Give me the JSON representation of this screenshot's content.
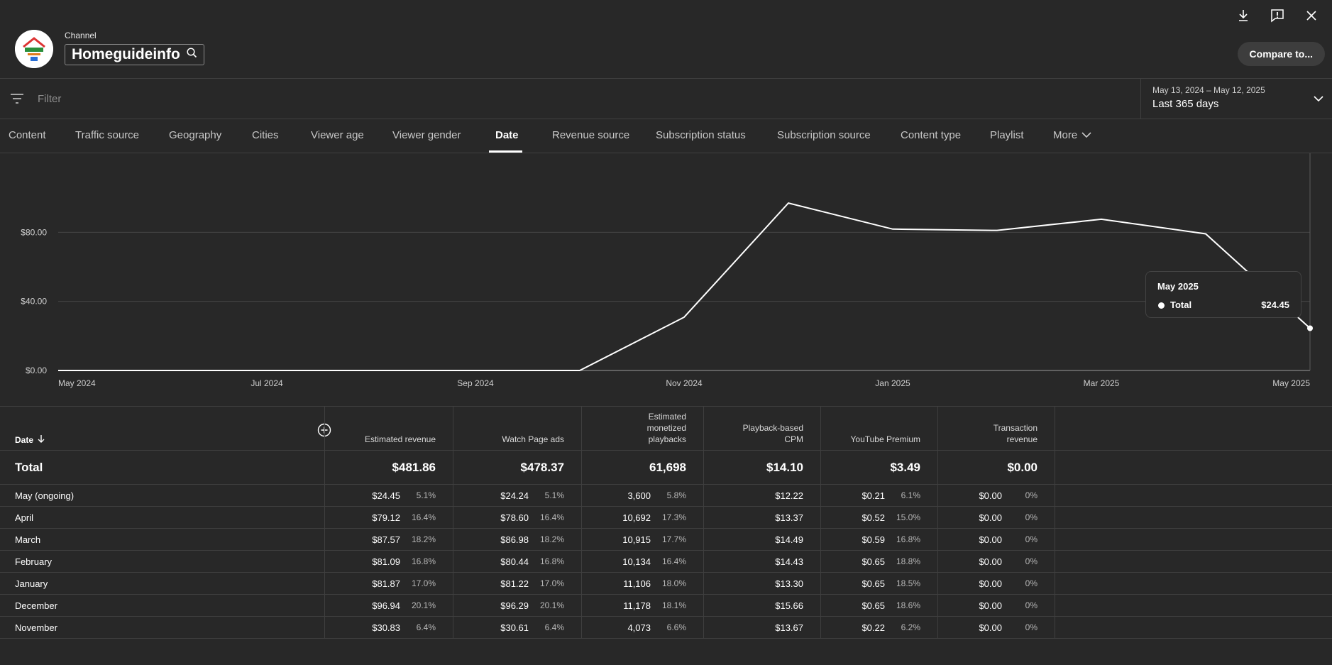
{
  "channel": {
    "label": "Channel",
    "name": "Homeguideinfo",
    "compare_label": "Compare to..."
  },
  "filter": {
    "placeholder": "Filter",
    "date_range_sub": "May 13, 2024 – May 12, 2025",
    "date_range_main": "Last 365 days"
  },
  "tabs": [
    "Content",
    "Traffic source",
    "Geography",
    "Cities",
    "Viewer age",
    "Viewer gender",
    "Date",
    "Revenue source",
    "Subscription status",
    "Subscription source",
    "Content type",
    "Playlist",
    "More"
  ],
  "active_tab": "Date",
  "chart_data": {
    "type": "line",
    "x": [
      "May 2024",
      "Jun 2024",
      "Jul 2024",
      "Aug 2024",
      "Sep 2024",
      "Oct 2024",
      "Nov 2024",
      "Dec 2024",
      "Jan 2025",
      "Feb 2025",
      "Mar 2025",
      "Apr 2025",
      "May 2025"
    ],
    "x_tick_labels": [
      "May 2024",
      "Jul 2024",
      "Sep 2024",
      "Nov 2024",
      "Jan 2025",
      "Mar 2025",
      "May 2025"
    ],
    "series": [
      {
        "name": "Total",
        "values": [
          0,
          0,
          0,
          0,
          0,
          0,
          30.83,
          96.94,
          81.87,
          81.09,
          87.57,
          79.12,
          24.45
        ]
      }
    ],
    "y_tick_labels": [
      "$0.00",
      "$40.00",
      "$80.00"
    ],
    "ylim": [
      0,
      120
    ],
    "grid": true,
    "tooltip": {
      "title": "May 2025",
      "label": "Total",
      "value": "$24.45"
    }
  },
  "table": {
    "date_header": "Date",
    "columns": [
      {
        "header": "Estimated revenue",
        "total": "$481.86"
      },
      {
        "header": "Watch Page ads",
        "total": "$478.37"
      },
      {
        "header": "Estimated monetized playbacks",
        "total": "61,698"
      },
      {
        "header": "Playback-based CPM",
        "total": "$14.10"
      },
      {
        "header": "YouTube Premium",
        "total": "$3.49"
      },
      {
        "header": "Transaction revenue",
        "total": "$0.00"
      }
    ],
    "total_label": "Total",
    "rows": [
      {
        "date": "May (ongoing)",
        "c": [
          [
            "$24.45",
            "5.1%"
          ],
          [
            "$24.24",
            "5.1%"
          ],
          [
            "3,600",
            "5.8%"
          ],
          [
            "$12.22",
            ""
          ],
          [
            "$0.21",
            "6.1%"
          ],
          [
            "$0.00",
            "0%"
          ]
        ]
      },
      {
        "date": "April",
        "c": [
          [
            "$79.12",
            "16.4%"
          ],
          [
            "$78.60",
            "16.4%"
          ],
          [
            "10,692",
            "17.3%"
          ],
          [
            "$13.37",
            ""
          ],
          [
            "$0.52",
            "15.0%"
          ],
          [
            "$0.00",
            "0%"
          ]
        ]
      },
      {
        "date": "March",
        "c": [
          [
            "$87.57",
            "18.2%"
          ],
          [
            "$86.98",
            "18.2%"
          ],
          [
            "10,915",
            "17.7%"
          ],
          [
            "$14.49",
            ""
          ],
          [
            "$0.59",
            "16.8%"
          ],
          [
            "$0.00",
            "0%"
          ]
        ]
      },
      {
        "date": "February",
        "c": [
          [
            "$81.09",
            "16.8%"
          ],
          [
            "$80.44",
            "16.8%"
          ],
          [
            "10,134",
            "16.4%"
          ],
          [
            "$14.43",
            ""
          ],
          [
            "$0.65",
            "18.8%"
          ],
          [
            "$0.00",
            "0%"
          ]
        ]
      },
      {
        "date": "January",
        "c": [
          [
            "$81.87",
            "17.0%"
          ],
          [
            "$81.22",
            "17.0%"
          ],
          [
            "11,106",
            "18.0%"
          ],
          [
            "$13.30",
            ""
          ],
          [
            "$0.65",
            "18.5%"
          ],
          [
            "$0.00",
            "0%"
          ]
        ]
      },
      {
        "date": "December",
        "c": [
          [
            "$96.94",
            "20.1%"
          ],
          [
            "$96.29",
            "20.1%"
          ],
          [
            "11,178",
            "18.1%"
          ],
          [
            "$15.66",
            ""
          ],
          [
            "$0.65",
            "18.6%"
          ],
          [
            "$0.00",
            "0%"
          ]
        ]
      },
      {
        "date": "November",
        "c": [
          [
            "$30.83",
            "6.4%"
          ],
          [
            "$30.61",
            "6.4%"
          ],
          [
            "4,073",
            "6.6%"
          ],
          [
            "$13.67",
            ""
          ],
          [
            "$0.22",
            "6.2%"
          ],
          [
            "$0.00",
            "0%"
          ]
        ]
      }
    ]
  }
}
